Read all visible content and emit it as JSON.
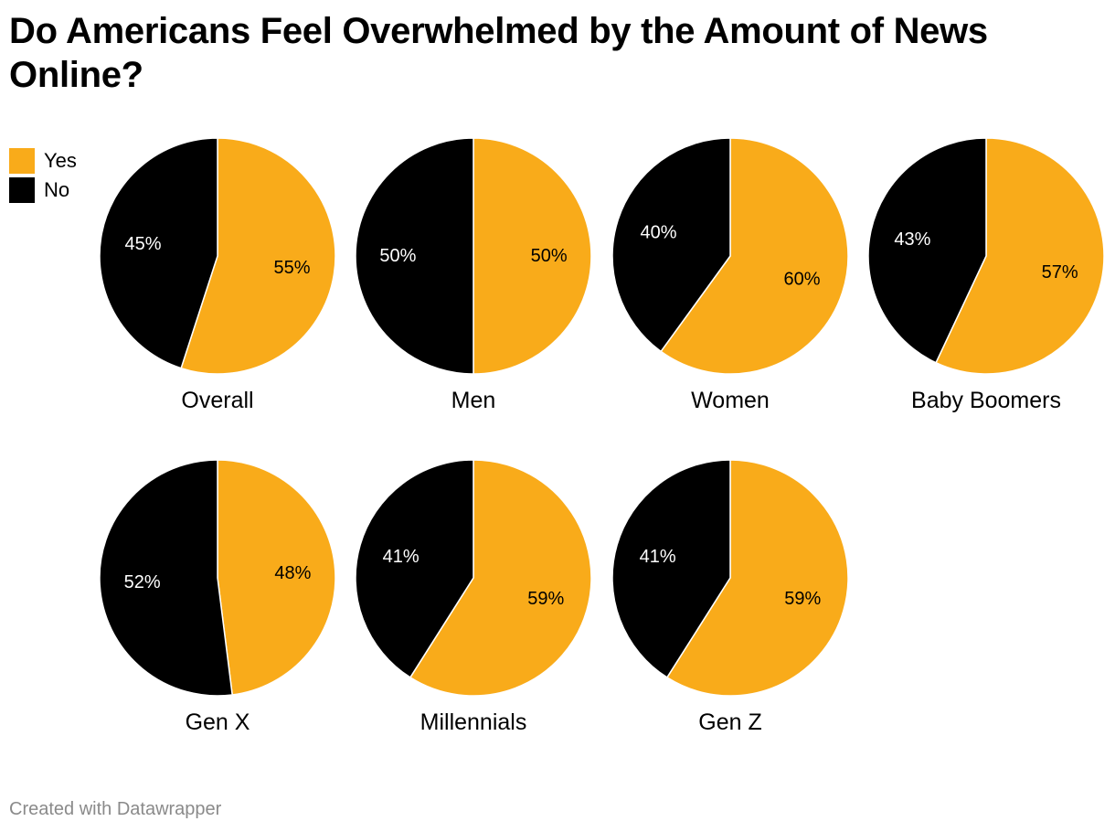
{
  "title": "Do Americans Feel Overwhelmed by the Amount of News Online?",
  "footer": "Created with Datawrapper",
  "legend": [
    {
      "label": "Yes",
      "color": "#f9ab1a"
    },
    {
      "label": "No",
      "color": "#000000"
    }
  ],
  "chart_data": {
    "type": "pie",
    "title": "Do Americans Feel Overwhelmed by the Amount of News Online?",
    "categories": [
      "Yes",
      "No"
    ],
    "colors": {
      "Yes": "#f9ab1a",
      "No": "#000000"
    },
    "pies": [
      {
        "name": "Overall",
        "values": {
          "Yes": 55,
          "No": 45
        },
        "labels": {
          "Yes": "55%",
          "No": "45%"
        }
      },
      {
        "name": "Men",
        "values": {
          "Yes": 50,
          "No": 50
        },
        "labels": {
          "Yes": "50%",
          "No": "50%"
        }
      },
      {
        "name": "Women",
        "values": {
          "Yes": 60,
          "No": 40
        },
        "labels": {
          "Yes": "60%",
          "No": "40%"
        }
      },
      {
        "name": "Baby Boomers",
        "values": {
          "Yes": 57,
          "No": 43
        },
        "labels": {
          "Yes": "57%",
          "No": "43%"
        }
      },
      {
        "name": "Gen X",
        "values": {
          "Yes": 48,
          "No": 52
        },
        "labels": {
          "Yes": "48%",
          "No": "52%"
        }
      },
      {
        "name": "Millennials",
        "values": {
          "Yes": 59,
          "No": 41
        },
        "labels": {
          "Yes": "59%",
          "No": "41%"
        }
      },
      {
        "name": "Gen Z",
        "values": {
          "Yes": 59,
          "No": 41
        },
        "labels": {
          "Yes": "59%",
          "No": "41%"
        }
      }
    ]
  }
}
